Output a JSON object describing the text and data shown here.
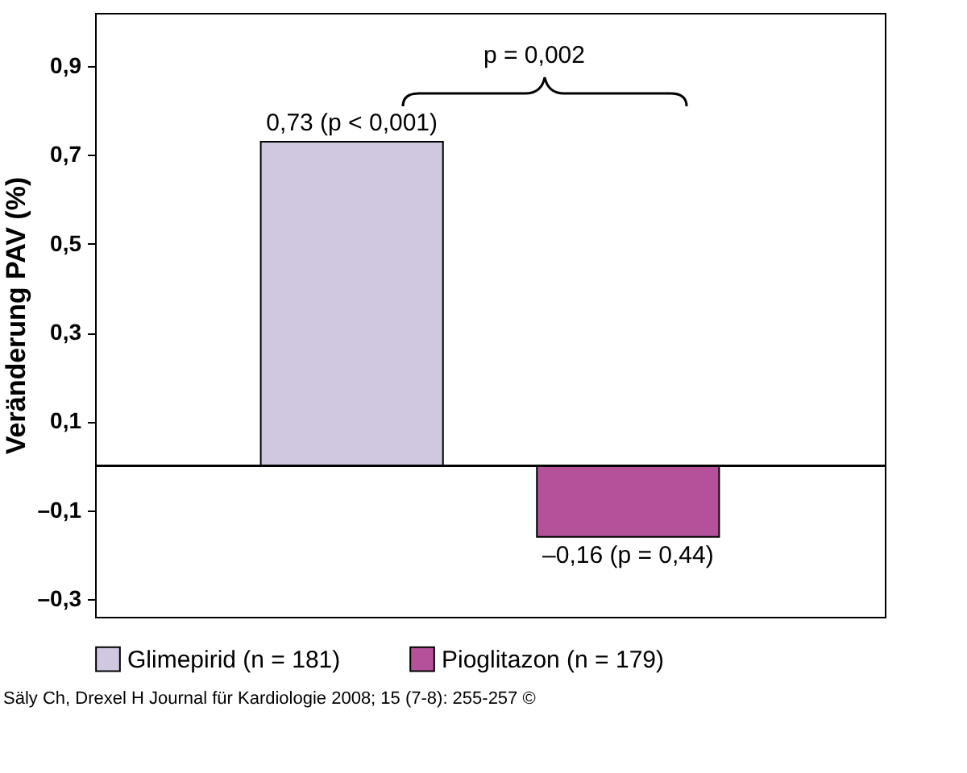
{
  "chart_data": {
    "type": "bar",
    "ylabel": "Veränderung PAV (%)",
    "categories": [
      null,
      null
    ],
    "series": [
      {
        "name": "Glimepirid (n = 181)",
        "color": "#cfc8e0",
        "values": [
          0.73,
          null
        ],
        "value_labels": [
          "0,73 (p < 0,001)",
          null
        ]
      },
      {
        "name": "Pioglitazon (n = 179)",
        "color": "#b5519b",
        "values": [
          null,
          -0.16
        ],
        "value_labels": [
          null,
          "–0,16 (p = 0,44)"
        ]
      }
    ],
    "ylim": [
      -0.34,
      1.02
    ],
    "yticks": [
      {
        "value": -0.3,
        "label": "–0,3"
      },
      {
        "value": -0.1,
        "label": "–0,1"
      },
      {
        "value": 0.1,
        "label": "0,1"
      },
      {
        "value": 0.3,
        "label": "0,3"
      },
      {
        "value": 0.5,
        "label": "0,5"
      },
      {
        "value": 0.7,
        "label": "0,7"
      },
      {
        "value": 0.9,
        "label": "0,9"
      }
    ],
    "ref_lines": [
      {
        "axis": "y",
        "value": 0
      }
    ],
    "grid": false,
    "legend": "bottom",
    "annotations": [
      "p = 0,002",
      "Säly Ch, Drexel H Journal für Kardiologie 2008; 15 (7-8): 255-257 ©"
    ]
  }
}
